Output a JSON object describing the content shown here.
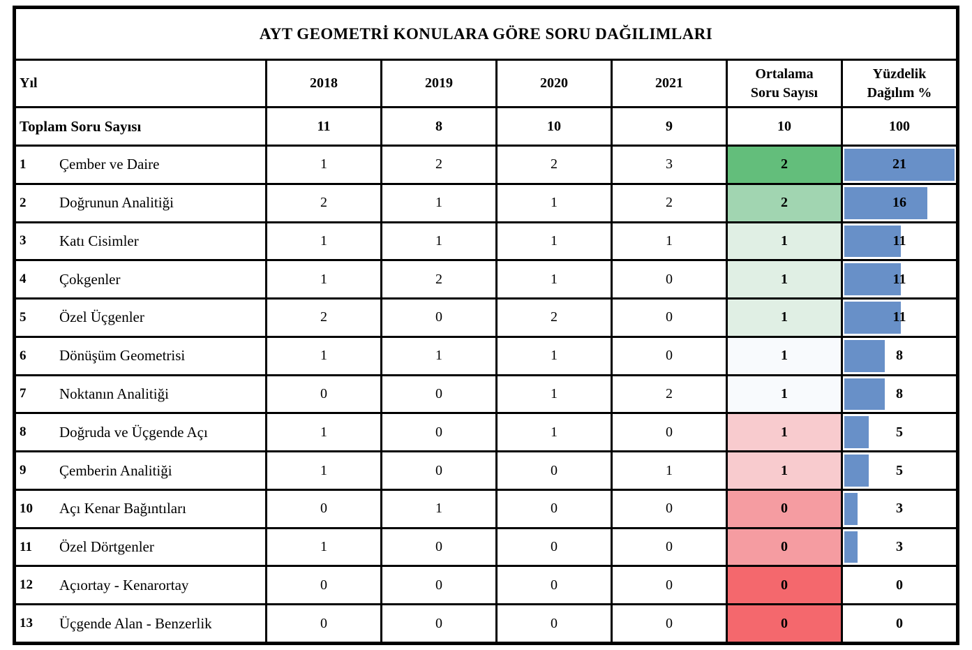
{
  "title": "AYT GEOMETRİ KONULARA GÖRE SORU DAĞILIMLARI",
  "header": {
    "year_label": "Yıl",
    "years": [
      "2018",
      "2019",
      "2020",
      "2021"
    ],
    "avg_line1": "Ortalama",
    "avg_line2": "Soru Sayısı",
    "pct_line1": "Yüzdelik",
    "pct_line2": "Dağılım %"
  },
  "totals": {
    "label": "Toplam Soru Sayısı",
    "y2018": "11",
    "y2019": "8",
    "y2020": "10",
    "y2021": "9",
    "avg": "10",
    "pct": "100"
  },
  "rows": [
    {
      "num": "1",
      "topic": "Çember ve Daire",
      "y2018": "1",
      "y2019": "2",
      "y2020": "2",
      "y2021": "3",
      "avg": "2",
      "pct": "21",
      "avg_bg": "#63BE7B"
    },
    {
      "num": "2",
      "topic": "Doğrunun Analitiği",
      "y2018": "2",
      "y2019": "1",
      "y2020": "1",
      "y2021": "2",
      "avg": "2",
      "pct": "16",
      "avg_bg": "#A1D5B1"
    },
    {
      "num": "3",
      "topic": "Katı Cisimler",
      "y2018": "1",
      "y2019": "1",
      "y2020": "1",
      "y2021": "1",
      "avg": "1",
      "pct": "11",
      "avg_bg": "#E0EFE4"
    },
    {
      "num": "4",
      "topic": "Çokgenler",
      "y2018": "1",
      "y2019": "2",
      "y2020": "1",
      "y2021": "0",
      "avg": "1",
      "pct": "11",
      "avg_bg": "#E0EFE4"
    },
    {
      "num": "5",
      "topic": "Özel Üçgenler",
      "y2018": "2",
      "y2019": "0",
      "y2020": "2",
      "y2021": "0",
      "avg": "1",
      "pct": "11",
      "avg_bg": "#E0EFE4"
    },
    {
      "num": "6",
      "topic": "Dönüşüm Geometrisi",
      "y2018": "1",
      "y2019": "1",
      "y2020": "1",
      "y2021": "0",
      "avg": "1",
      "pct": "8",
      "avg_bg": "#F8FAFD"
    },
    {
      "num": "7",
      "topic": "Noktanın Analitiği",
      "y2018": "0",
      "y2019": "0",
      "y2020": "1",
      "y2021": "2",
      "avg": "1",
      "pct": "8",
      "avg_bg": "#F8FAFD"
    },
    {
      "num": "8",
      "topic": "Doğruda ve Üçgende Açı",
      "y2018": "1",
      "y2019": "0",
      "y2020": "1",
      "y2021": "0",
      "avg": "1",
      "pct": "5",
      "avg_bg": "#F8CBCE"
    },
    {
      "num": "9",
      "topic": "Çemberin Analitiği",
      "y2018": "1",
      "y2019": "0",
      "y2020": "0",
      "y2021": "1",
      "avg": "1",
      "pct": "5",
      "avg_bg": "#F8CBCE"
    },
    {
      "num": "10",
      "topic": "Açı Kenar Bağıntıları",
      "y2018": "0",
      "y2019": "1",
      "y2020": "0",
      "y2021": "0",
      "avg": "0",
      "pct": "3",
      "avg_bg": "#F59CA1"
    },
    {
      "num": "11",
      "topic": "Özel Dörtgenler",
      "y2018": "1",
      "y2019": "0",
      "y2020": "0",
      "y2021": "0",
      "avg": "0",
      "pct": "3",
      "avg_bg": "#F59CA1"
    },
    {
      "num": "12",
      "topic": "Açıortay - Kenarortay",
      "y2018": "0",
      "y2019": "0",
      "y2020": "0",
      "y2021": "0",
      "avg": "0",
      "pct": "0",
      "avg_bg": "#F4686D"
    },
    {
      "num": "13",
      "topic": "Üçgende Alan - Benzerlik",
      "y2018": "0",
      "y2019": "0",
      "y2020": "0",
      "y2021": "0",
      "avg": "0",
      "pct": "0",
      "avg_bg": "#F4686D"
    }
  ],
  "colors": {
    "bar_blue": "#6890C8",
    "border": "#000000",
    "cell_bg": "#FFFFFF",
    "scale_max_green": "#63BE7B",
    "scale_mid_white": "#F8FAFD",
    "scale_min_red": "#F4686D"
  },
  "chart_data": {
    "type": "table",
    "title": "AYT GEOMETRİ KONULARA GÖRE SORU DAĞILIMLARI",
    "columns": [
      "Yıl",
      "2018",
      "2019",
      "2020",
      "2021",
      "Ortalama Soru Sayısı",
      "Yüzdelik Dağılım %"
    ],
    "totals_row": [
      "Toplam Soru Sayısı",
      11,
      8,
      10,
      9,
      10,
      100
    ],
    "rows": [
      [
        "Çember ve Daire",
        1,
        2,
        2,
        3,
        2,
        21
      ],
      [
        "Doğrunun Analitiği",
        2,
        1,
        1,
        2,
        2,
        16
      ],
      [
        "Katı Cisimler",
        1,
        1,
        1,
        1,
        1,
        11
      ],
      [
        "Çokgenler",
        1,
        2,
        1,
        0,
        1,
        11
      ],
      [
        "Özel Üçgenler",
        2,
        0,
        2,
        0,
        1,
        11
      ],
      [
        "Dönüşüm Geometrisi",
        1,
        1,
        1,
        0,
        1,
        8
      ],
      [
        "Noktanın Analitiği",
        0,
        0,
        1,
        2,
        1,
        8
      ],
      [
        "Doğruda ve Üçgende Açı",
        1,
        0,
        1,
        0,
        1,
        5
      ],
      [
        "Çemberin Analitiği",
        1,
        0,
        0,
        1,
        1,
        5
      ],
      [
        "Açı Kenar Bağıntıları",
        0,
        1,
        0,
        0,
        0,
        3
      ],
      [
        "Özel Dörtgenler",
        1,
        0,
        0,
        0,
        0,
        3
      ],
      [
        "Açıortay - Kenarortay",
        0,
        0,
        0,
        0,
        0,
        0
      ],
      [
        "Üçgende Alan - Benzerlik",
        0,
        0,
        0,
        0,
        0,
        0
      ]
    ],
    "bar_scale_max": 21,
    "layout_hints": {
      "percent_column_style": "blue data bars scaled 0..21",
      "average_column_style": "green-white-red color scale",
      "grid": "thick black cell borders"
    }
  }
}
